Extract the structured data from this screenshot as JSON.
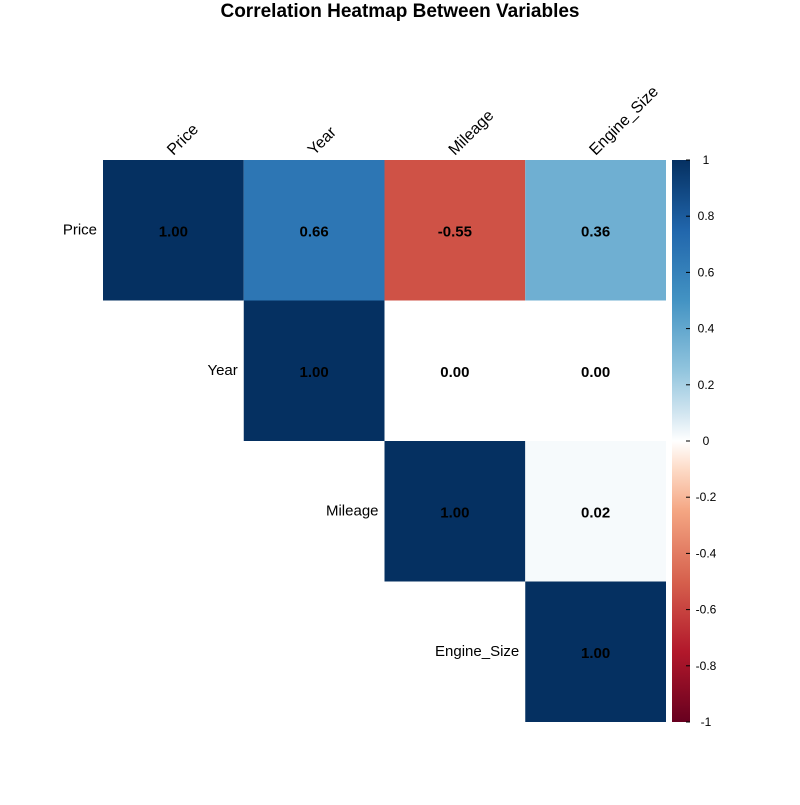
{
  "chart_data": {
    "type": "heatmap",
    "title": "Correlation Heatmap Between Variables",
    "variables": [
      "Price",
      "Year",
      "Mileage",
      "Engine_Size"
    ],
    "triangle": "upper",
    "cells": [
      {
        "row": "Price",
        "col": "Price",
        "value": 1.0,
        "label": "1.00"
      },
      {
        "row": "Price",
        "col": "Year",
        "value": 0.66,
        "label": "0.66"
      },
      {
        "row": "Price",
        "col": "Mileage",
        "value": -0.55,
        "label": "-0.55"
      },
      {
        "row": "Price",
        "col": "Engine_Size",
        "value": 0.36,
        "label": "0.36"
      },
      {
        "row": "Year",
        "col": "Year",
        "value": 1.0,
        "label": "1.00"
      },
      {
        "row": "Year",
        "col": "Mileage",
        "value": 0.0,
        "label": "0.00"
      },
      {
        "row": "Year",
        "col": "Engine_Size",
        "value": 0.0,
        "label": "0.00"
      },
      {
        "row": "Mileage",
        "col": "Mileage",
        "value": 1.0,
        "label": "1.00"
      },
      {
        "row": "Mileage",
        "col": "Engine_Size",
        "value": 0.02,
        "label": "0.02"
      },
      {
        "row": "Engine_Size",
        "col": "Engine_Size",
        "value": 1.0,
        "label": "1.00"
      }
    ],
    "colorbar": {
      "range": [
        -1,
        1
      ],
      "ticks": [
        1,
        0.8,
        0.6,
        0.4,
        0.2,
        0,
        -0.2,
        -0.4,
        -0.6,
        -0.8,
        -1
      ],
      "tick_labels": [
        "1",
        "0.8",
        "0.6",
        "0.4",
        "0.2",
        "0",
        "-0.2",
        "-0.4",
        "-0.6",
        "-0.8",
        "-1"
      ]
    },
    "palette": {
      "stops": [
        {
          "v": -1.0,
          "c": "#67001F"
        },
        {
          "v": -0.75,
          "c": "#B2182B"
        },
        {
          "v": -0.5,
          "c": "#D6604D"
        },
        {
          "v": -0.25,
          "c": "#F4A582"
        },
        {
          "v": -0.1,
          "c": "#FDDBC7"
        },
        {
          "v": 0.0,
          "c": "#FFFFFF"
        },
        {
          "v": 0.1,
          "c": "#D1E5F0"
        },
        {
          "v": 0.25,
          "c": "#92C5DE"
        },
        {
          "v": 0.5,
          "c": "#4393C3"
        },
        {
          "v": 0.75,
          "c": "#2166AC"
        },
        {
          "v": 1.0,
          "c": "#053061"
        }
      ]
    }
  }
}
